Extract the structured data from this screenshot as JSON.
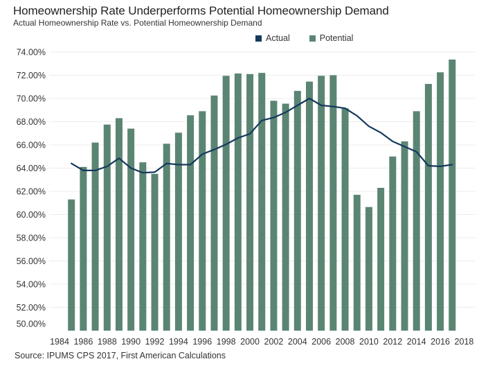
{
  "header": {
    "title": "Homeownership Rate Underperforms Potential Homeownership Demand",
    "subtitle": "Actual Homeownership Rate vs. Potential Homeownership Demand"
  },
  "legend": {
    "items": [
      {
        "label": "Actual",
        "color": "#14395c"
      },
      {
        "label": "Potential",
        "color": "#5b8573"
      }
    ]
  },
  "footer": {
    "source": "Source: IPUMS CPS 2017, First American Calculations"
  },
  "chart_data": {
    "type": "bar",
    "title": "Homeownership Rate Underperforms Potential Homeownership Demand",
    "subtitle": "Actual Homeownership Rate vs. Potential Homeownership Demand",
    "xlabel": "",
    "ylabel": "",
    "ylim": [
      50,
      74
    ],
    "grid": true,
    "legend_position": "top-center",
    "y_ticks": [
      "50.00%",
      "52.00%",
      "54.00%",
      "56.00%",
      "58.00%",
      "60.00%",
      "62.00%",
      "64.00%",
      "66.00%",
      "68.00%",
      "70.00%",
      "72.00%",
      "74.00%"
    ],
    "y_tick_values": [
      50,
      52,
      54,
      56,
      58,
      60,
      62,
      64,
      66,
      68,
      70,
      72,
      74
    ],
    "x_ticks": [
      "1984",
      "1986",
      "1988",
      "1990",
      "1992",
      "1994",
      "1996",
      "1998",
      "2000",
      "2002",
      "2004",
      "2006",
      "2008",
      "2010",
      "2012",
      "2014",
      "2016",
      "2018"
    ],
    "x_tick_values": [
      1984,
      1986,
      1988,
      1990,
      1992,
      1994,
      1996,
      1998,
      2000,
      2002,
      2004,
      2006,
      2008,
      2010,
      2012,
      2014,
      2016,
      2018
    ],
    "xlim": [
      1984,
      2018
    ],
    "x": [
      1985,
      1986,
      1987,
      1988,
      1989,
      1990,
      1991,
      1992,
      1993,
      1994,
      1995,
      1996,
      1997,
      1998,
      1999,
      2000,
      2001,
      2002,
      2003,
      2004,
      2005,
      2006,
      2007,
      2008,
      2009,
      2010,
      2011,
      2012,
      2013,
      2014,
      2015,
      2016,
      2017
    ],
    "series": [
      {
        "name": "Actual",
        "type": "line",
        "color": "#14395c",
        "values": [
          64.4,
          63.8,
          63.8,
          64.15,
          64.85,
          64.0,
          63.6,
          63.65,
          64.4,
          64.3,
          64.3,
          65.2,
          65.6,
          66.05,
          66.6,
          66.95,
          68.1,
          68.35,
          68.8,
          69.4,
          70.0,
          69.4,
          69.3,
          69.15,
          68.5,
          67.6,
          67.05,
          66.3,
          65.85,
          65.4,
          64.2,
          64.15,
          64.3
        ]
      },
      {
        "name": "Potential",
        "type": "bar",
        "color": "#5b8573",
        "values": [
          61.3,
          64.1,
          66.2,
          67.75,
          68.3,
          67.4,
          64.5,
          63.5,
          66.1,
          67.05,
          68.55,
          68.9,
          70.25,
          71.95,
          72.15,
          72.1,
          72.2,
          69.8,
          69.55,
          70.65,
          71.45,
          71.95,
          72.0,
          69.15,
          61.7,
          60.65,
          62.3,
          65.0,
          66.3,
          68.9,
          71.25,
          72.25,
          73.35
        ]
      }
    ]
  }
}
